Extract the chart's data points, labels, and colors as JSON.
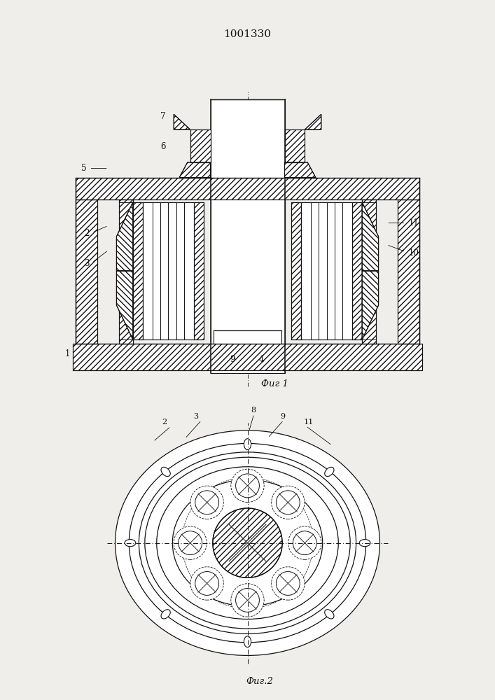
{
  "title": "1001330",
  "fig1_label": "Фиг 1",
  "fig2_label": "Фиг.2",
  "bg_color": "#f0eeea",
  "line_color": "#111111"
}
